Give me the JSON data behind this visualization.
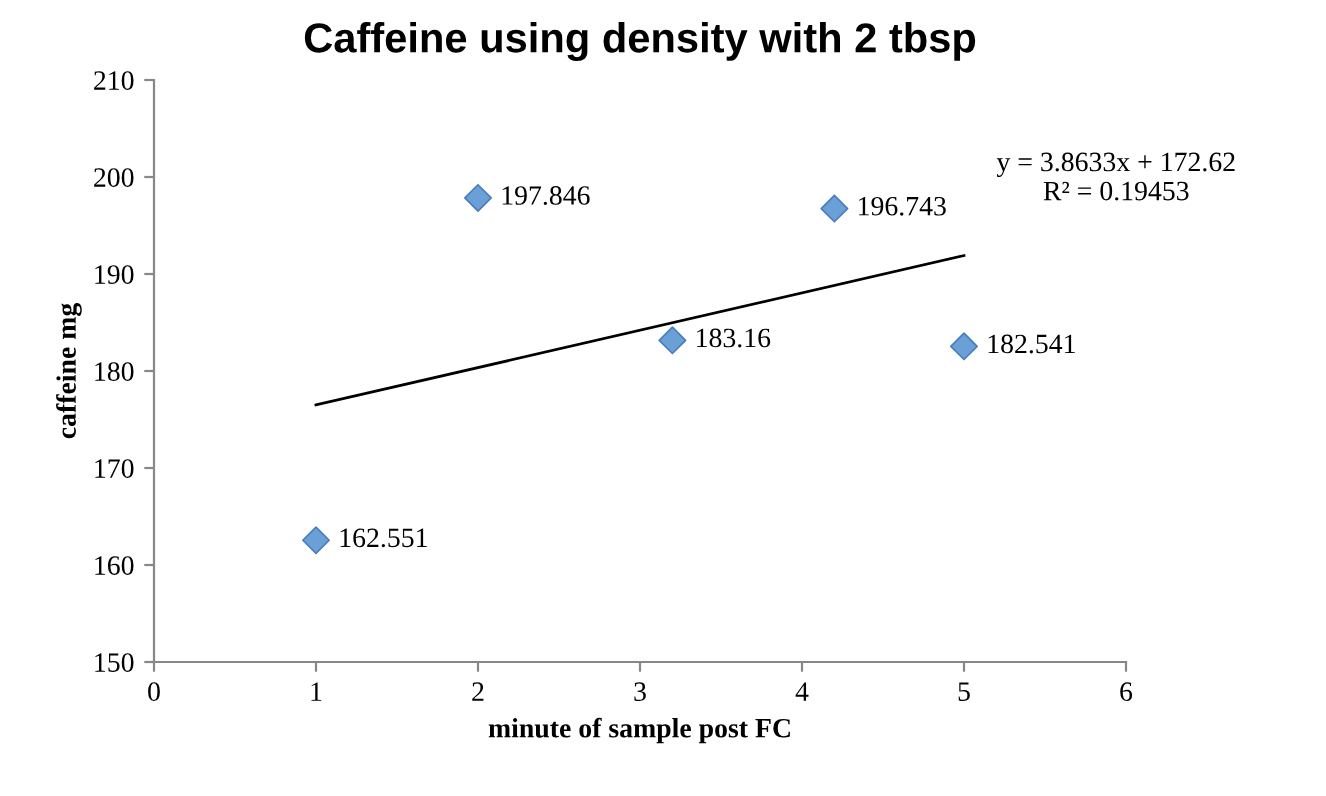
{
  "chart_data": {
    "type": "scatter",
    "title": "Caffeine using density with 2 tbsp",
    "xlabel": "minute of sample post FC",
    "ylabel": "caffeine mg",
    "series": [
      {
        "color": "#6a9fd8",
        "x": [
          1,
          2,
          3.2,
          4.2,
          5
        ],
        "values": [
          162.551,
          197.846,
          183.16,
          196.743,
          182.541
        ],
        "value_labels": [
          "162.551",
          "197.846",
          "183.16",
          "196.743",
          "182.541"
        ],
        "marker": "diamond"
      },
      {
        "type": "line",
        "color": "#000000",
        "x": [
          1,
          5
        ],
        "values": [
          176.5,
          191.9
        ],
        "marker": "none",
        "line_style": "solid"
      }
    ],
    "annotations": [
      "y = 3.8633x + 172.62",
      "R² = 0.19453"
    ],
    "xlim": [
      0,
      6
    ],
    "xticks": [
      0,
      1,
      2,
      3,
      4,
      5,
      6
    ],
    "ylim": [
      150,
      210
    ],
    "yticks": [
      150,
      160,
      170,
      180,
      190,
      200,
      210
    ],
    "grid": false,
    "legend": false
  }
}
